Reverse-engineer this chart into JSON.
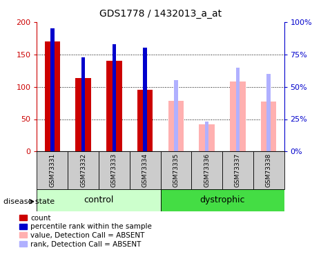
{
  "title": "GDS1778 / 1432013_a_at",
  "samples": [
    "GSM73331",
    "GSM73332",
    "GSM73333",
    "GSM73334",
    "GSM73335",
    "GSM73336",
    "GSM73337",
    "GSM73338"
  ],
  "count_values": [
    170,
    113,
    140,
    95,
    null,
    null,
    null,
    null
  ],
  "percentile_values": [
    95,
    73,
    83,
    80,
    null,
    null,
    null,
    null
  ],
  "absent_value": [
    null,
    null,
    null,
    null,
    78,
    42,
    108,
    77
  ],
  "absent_rank": [
    null,
    null,
    null,
    null,
    55,
    23,
    65,
    60
  ],
  "control_samples": [
    0,
    1,
    2,
    3
  ],
  "dystrophic_samples": [
    4,
    5,
    6,
    7
  ],
  "ylim_left": [
    0,
    200
  ],
  "ylim_right": [
    0,
    100
  ],
  "yticks_left": [
    0,
    50,
    100,
    150,
    200
  ],
  "yticks_right": [
    0,
    25,
    50,
    75,
    100
  ],
  "color_count": "#cc0000",
  "color_percentile": "#0000cc",
  "color_absent_value": "#ffb0b0",
  "color_absent_rank": "#b0b0ff",
  "color_control_bg": "#ccffcc",
  "color_dystrophic_bg": "#44dd44",
  "color_sample_bg": "#cccccc",
  "legend_items": [
    "count",
    "percentile rank within the sample",
    "value, Detection Call = ABSENT",
    "rank, Detection Call = ABSENT"
  ],
  "legend_colors": [
    "#cc0000",
    "#0000cc",
    "#ffb0b0",
    "#b0b0ff"
  ],
  "bar_width": 0.5,
  "blue_bar_width": 0.12
}
